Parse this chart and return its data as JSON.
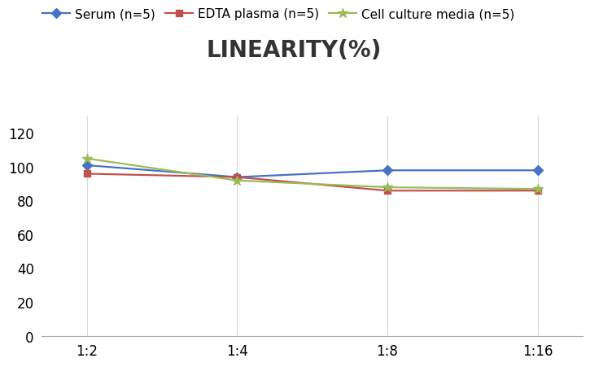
{
  "title": "LINEARITY(%)",
  "x_labels": [
    "1:2",
    "1:4",
    "1:8",
    "1:16"
  ],
  "x_positions": [
    0,
    1,
    2,
    3
  ],
  "series": [
    {
      "label": "Serum (n=5)",
      "values": [
        101,
        94,
        98,
        98
      ],
      "color": "#4472C4",
      "marker": "D",
      "markersize": 6,
      "linewidth": 1.6
    },
    {
      "label": "EDTA plasma (n=5)",
      "values": [
        96,
        94,
        86,
        86
      ],
      "color": "#C0504D",
      "marker": "s",
      "markersize": 6,
      "linewidth": 1.6
    },
    {
      "label": "Cell culture media (n=5)",
      "values": [
        105,
        92,
        88,
        87
      ],
      "color": "#9BBB59",
      "marker": "*",
      "markersize": 9,
      "linewidth": 1.6
    }
  ],
  "ylim": [
    0,
    130
  ],
  "yticks": [
    0,
    20,
    40,
    60,
    80,
    100,
    120
  ],
  "background_color": "#ffffff",
  "grid_color": "#d8d8d8",
  "title_fontsize": 20,
  "legend_fontsize": 11,
  "tick_fontsize": 12
}
